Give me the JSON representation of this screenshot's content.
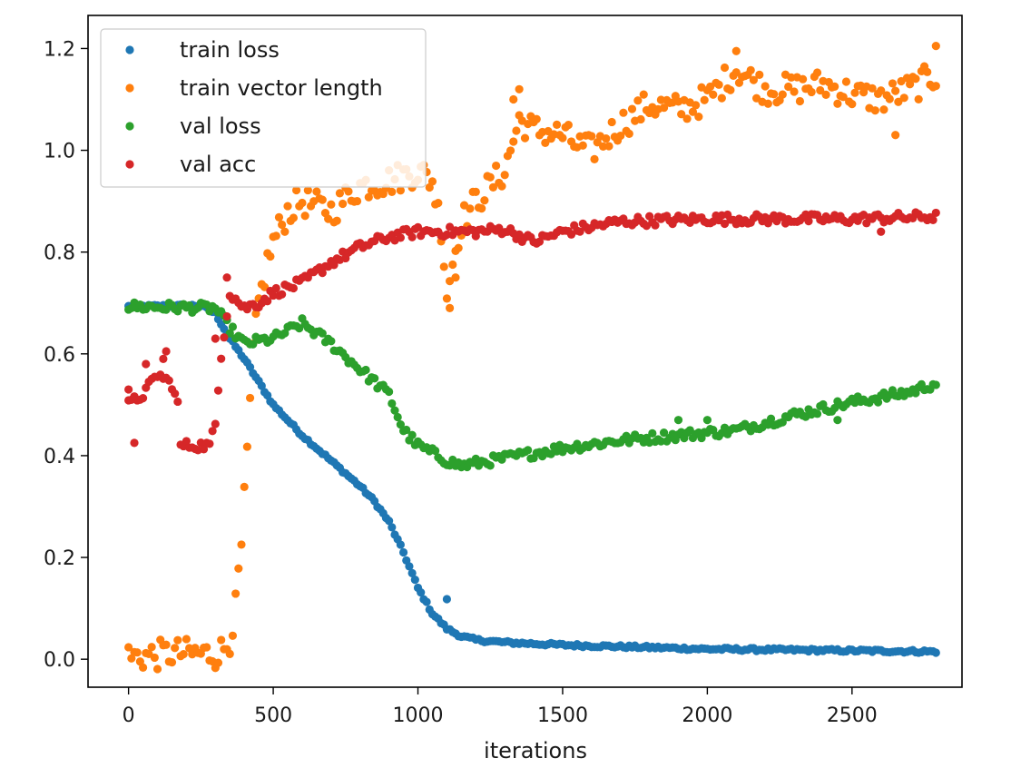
{
  "chart_data": {
    "type": "scatter",
    "xlabel": "iterations",
    "ylabel": "",
    "title": "",
    "xlim": [
      -140,
      2880
    ],
    "ylim": [
      -0.055,
      1.265
    ],
    "xticks": [
      0,
      500,
      1000,
      1500,
      2000,
      2500
    ],
    "yticks": [
      0.0,
      0.2,
      0.4,
      0.6,
      0.8,
      1.0,
      1.2
    ],
    "ytick_labels": [
      "0.0",
      "0.2",
      "0.4",
      "0.6",
      "0.8",
      "1.0",
      "1.2"
    ],
    "grid": false,
    "legend_position": "top-left",
    "series": [
      {
        "name": "train loss",
        "color": "#1f77b4",
        "knots": [
          [
            0,
            0.693
          ],
          [
            250,
            0.695
          ],
          [
            300,
            0.68
          ],
          [
            350,
            0.63
          ],
          [
            400,
            0.59
          ],
          [
            450,
            0.545
          ],
          [
            500,
            0.5
          ],
          [
            600,
            0.44
          ],
          [
            700,
            0.39
          ],
          [
            800,
            0.34
          ],
          [
            850,
            0.31
          ],
          [
            900,
            0.27
          ],
          [
            950,
            0.21
          ],
          [
            1000,
            0.14
          ],
          [
            1050,
            0.09
          ],
          [
            1100,
            0.06
          ],
          [
            1150,
            0.045
          ],
          [
            1200,
            0.038
          ],
          [
            1300,
            0.033
          ],
          [
            1500,
            0.028
          ],
          [
            2000,
            0.02
          ],
          [
            2800,
            0.015
          ]
        ],
        "noise": 0.003,
        "outliers": [
          [
            1100,
            0.118
          ]
        ]
      },
      {
        "name": "train vector length",
        "color": "#ff7f0e",
        "knots": [
          [
            0,
            0.005
          ],
          [
            100,
            0.008
          ],
          [
            150,
            0.012
          ],
          [
            300,
            0.01
          ],
          [
            330,
            0.02
          ],
          [
            350,
            0.04
          ],
          [
            370,
            0.1
          ],
          [
            390,
            0.22
          ],
          [
            410,
            0.4
          ],
          [
            430,
            0.6
          ],
          [
            450,
            0.7
          ],
          [
            480,
            0.78
          ],
          [
            500,
            0.82
          ],
          [
            550,
            0.88
          ],
          [
            600,
            0.9
          ],
          [
            700,
            0.88
          ],
          [
            800,
            0.93
          ],
          [
            900,
            0.94
          ],
          [
            1000,
            0.96
          ],
          [
            1050,
            0.94
          ],
          [
            1080,
            0.85
          ],
          [
            1100,
            0.72
          ],
          [
            1120,
            0.78
          ],
          [
            1150,
            0.86
          ],
          [
            1200,
            0.9
          ],
          [
            1300,
            0.96
          ],
          [
            1350,
            1.06
          ],
          [
            1400,
            1.04
          ],
          [
            1500,
            1.03
          ],
          [
            1550,
            1.01
          ],
          [
            1600,
            1.0
          ],
          [
            1700,
            1.05
          ],
          [
            1800,
            1.09
          ],
          [
            1900,
            1.08
          ],
          [
            2000,
            1.1
          ],
          [
            2100,
            1.16
          ],
          [
            2200,
            1.12
          ],
          [
            2300,
            1.12
          ],
          [
            2400,
            1.13
          ],
          [
            2500,
            1.11
          ],
          [
            2600,
            1.1
          ],
          [
            2700,
            1.12
          ],
          [
            2800,
            1.15
          ]
        ],
        "noise": 0.03,
        "outliers": [
          [
            1330,
            1.1
          ],
          [
            1350,
            1.12
          ],
          [
            2100,
            1.195
          ],
          [
            2650,
            1.03
          ],
          [
            1110,
            0.69
          ],
          [
            1130,
            0.75
          ],
          [
            2790,
            1.205
          ]
        ]
      },
      {
        "name": "val loss",
        "color": "#2ca02c",
        "knots": [
          [
            0,
            0.693
          ],
          [
            300,
            0.69
          ],
          [
            350,
            0.65
          ],
          [
            400,
            0.62
          ],
          [
            500,
            0.63
          ],
          [
            600,
            0.66
          ],
          [
            700,
            0.62
          ],
          [
            800,
            0.57
          ],
          [
            900,
            0.52
          ],
          [
            950,
            0.45
          ],
          [
            1000,
            0.42
          ],
          [
            1100,
            0.39
          ],
          [
            1150,
            0.38
          ],
          [
            1300,
            0.395
          ],
          [
            1500,
            0.415
          ],
          [
            1700,
            0.43
          ],
          [
            1900,
            0.44
          ],
          [
            2100,
            0.45
          ],
          [
            2300,
            0.48
          ],
          [
            2500,
            0.505
          ],
          [
            2700,
            0.525
          ],
          [
            2800,
            0.545
          ]
        ],
        "noise": 0.01,
        "outliers": [
          [
            1900,
            0.47
          ],
          [
            2450,
            0.47
          ],
          [
            2000,
            0.47
          ]
        ]
      },
      {
        "name": "val acc",
        "color": "#d62728",
        "knots": [
          [
            0,
            0.5
          ],
          [
            50,
            0.52
          ],
          [
            100,
            0.56
          ],
          [
            150,
            0.54
          ],
          [
            170,
            0.5
          ],
          [
            180,
            0.42
          ],
          [
            280,
            0.42
          ],
          [
            300,
            0.46
          ],
          [
            320,
            0.6
          ],
          [
            350,
            0.72
          ],
          [
            400,
            0.69
          ],
          [
            450,
            0.7
          ],
          [
            500,
            0.72
          ],
          [
            600,
            0.74
          ],
          [
            700,
            0.78
          ],
          [
            800,
            0.81
          ],
          [
            900,
            0.83
          ],
          [
            1000,
            0.84
          ],
          [
            1200,
            0.84
          ],
          [
            1300,
            0.845
          ],
          [
            1400,
            0.82
          ],
          [
            1500,
            0.84
          ],
          [
            1700,
            0.86
          ],
          [
            2000,
            0.865
          ],
          [
            2500,
            0.865
          ],
          [
            2800,
            0.87
          ]
        ],
        "noise": 0.01,
        "outliers": [
          [
            0,
            0.53
          ],
          [
            20,
            0.425
          ],
          [
            60,
            0.58
          ],
          [
            130,
            0.605
          ],
          [
            120,
            0.59
          ],
          [
            340,
            0.75
          ],
          [
            300,
            0.63
          ],
          [
            2600,
            0.84
          ]
        ]
      }
    ]
  }
}
